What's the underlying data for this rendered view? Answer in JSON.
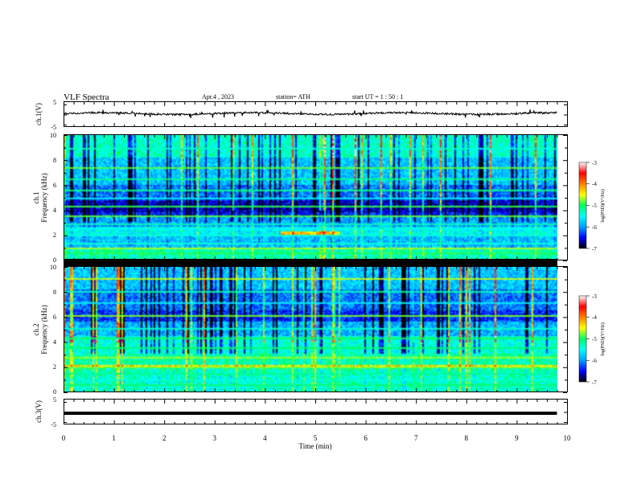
{
  "header": {
    "title": "VLF  Spectra",
    "date": "Apr.4  , 2023",
    "station": "station= ATH",
    "start": "start  UT  =   1  : 50 : 1"
  },
  "chart_data": [
    {
      "type": "line",
      "name": "ch1-waveform",
      "ylabel": "ch.1(V)",
      "ylim": [
        -5,
        5
      ],
      "ytick_labels": [
        "5",
        "-5"
      ],
      "x_range_min": [
        0,
        9.8
      ],
      "baseline_v": 0.4
    },
    {
      "type": "heatmap",
      "name": "ch1-spectrogram",
      "ylabel": "Frequency  (kHz)",
      "channel_label": "ch.1",
      "ylim": [
        0,
        10
      ],
      "ytick_labels": [
        "0",
        "2",
        "4",
        "6",
        "8",
        "10"
      ],
      "x_range_min": [
        0,
        9.8
      ],
      "colorbar": {
        "label": "log(PSD)(V²/Hz)",
        "range": [
          -7,
          -3
        ],
        "tick_labels": [
          "-3",
          "-4",
          "-5",
          "-6",
          "-7"
        ],
        "colors": [
          "#000000",
          "#0000ff",
          "#00a0ff",
          "#00ffff",
          "#00ff60",
          "#ffff00",
          "#ff8000",
          "#ff0000",
          "#ffffff"
        ]
      }
    },
    {
      "type": "heatmap",
      "name": "ch2-spectrogram",
      "ylabel": "Frequency  (kHz)",
      "channel_label": "ch.2",
      "ylim": [
        0,
        10
      ],
      "ytick_labels": [
        "0",
        "2",
        "4",
        "6",
        "8",
        "10"
      ],
      "x_range_min": [
        0,
        9.8
      ],
      "colorbar": {
        "label": "log(PSD)(V²/Hz)",
        "range": [
          -7,
          -3
        ],
        "tick_labels": [
          "-3",
          "-4",
          "-5",
          "-6",
          "-7"
        ],
        "colors": [
          "#000000",
          "#0000ff",
          "#00a0ff",
          "#00ffff",
          "#00ff60",
          "#ffff00",
          "#ff8000",
          "#ff0000",
          "#ffffff"
        ]
      }
    },
    {
      "type": "line",
      "name": "ch3-waveform",
      "ylabel": "ch.3(V)",
      "ylim": [
        -5,
        5
      ],
      "ytick_labels": [
        "5",
        "-5"
      ],
      "x_range_min": [
        0,
        9.8
      ],
      "baseline_v": -0.5
    }
  ],
  "x_axis": {
    "label": "Time  (min)",
    "range": [
      0,
      10
    ],
    "tick_labels": [
      "0",
      "1",
      "2",
      "3",
      "4",
      "5",
      "6",
      "7",
      "8",
      "9",
      "10"
    ]
  }
}
